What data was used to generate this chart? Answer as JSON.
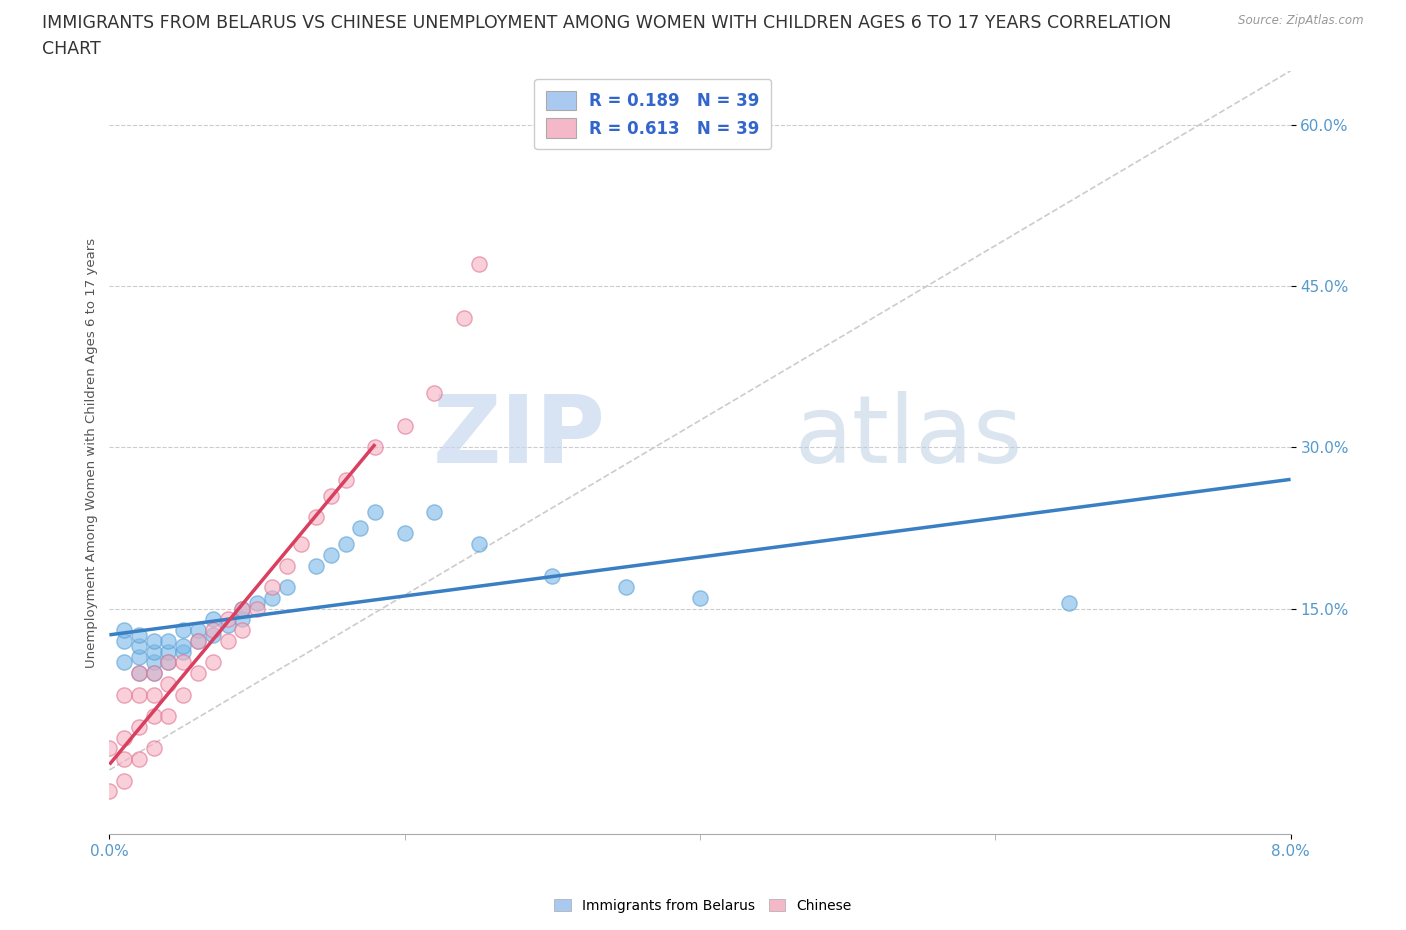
{
  "title_line1": "IMMIGRANTS FROM BELARUS VS CHINESE UNEMPLOYMENT AMONG WOMEN WITH CHILDREN AGES 6 TO 17 YEARS CORRELATION",
  "title_line2": "CHART",
  "source": "Source: ZipAtlas.com",
  "ylabel_label": "Unemployment Among Women with Children Ages 6 to 17 years",
  "legend_entries": [
    {
      "label": "Immigrants from Belarus",
      "R": "0.189",
      "N": "39",
      "color": "#aac9f0",
      "edgecolor": "#aac9f0"
    },
    {
      "label": "Chinese",
      "R": "0.613",
      "N": "39",
      "color": "#f5b8c8",
      "edgecolor": "#f5b8c8"
    }
  ],
  "watermark_zip": "ZIP",
  "watermark_atlas": "atlas",
  "belarus_scatter": {
    "x": [
      0.001,
      0.001,
      0.001,
      0.002,
      0.002,
      0.002,
      0.002,
      0.003,
      0.003,
      0.003,
      0.003,
      0.004,
      0.004,
      0.004,
      0.005,
      0.005,
      0.005,
      0.006,
      0.006,
      0.007,
      0.007,
      0.008,
      0.009,
      0.009,
      0.01,
      0.011,
      0.012,
      0.014,
      0.015,
      0.016,
      0.017,
      0.018,
      0.02,
      0.022,
      0.025,
      0.03,
      0.035,
      0.04,
      0.065
    ],
    "y": [
      0.1,
      0.12,
      0.13,
      0.09,
      0.105,
      0.115,
      0.125,
      0.09,
      0.1,
      0.11,
      0.12,
      0.1,
      0.11,
      0.12,
      0.11,
      0.115,
      0.13,
      0.12,
      0.13,
      0.125,
      0.14,
      0.135,
      0.14,
      0.15,
      0.155,
      0.16,
      0.17,
      0.19,
      0.2,
      0.21,
      0.225,
      0.24,
      0.22,
      0.24,
      0.21,
      0.18,
      0.17,
      0.16,
      0.155
    ],
    "color": "#7ab8e8",
    "edgecolor": "#5a9fd4",
    "size": 120
  },
  "chinese_scatter": {
    "x": [
      0.0,
      0.0,
      0.001,
      0.001,
      0.001,
      0.001,
      0.002,
      0.002,
      0.002,
      0.002,
      0.003,
      0.003,
      0.003,
      0.003,
      0.004,
      0.004,
      0.004,
      0.005,
      0.005,
      0.006,
      0.006,
      0.007,
      0.007,
      0.008,
      0.008,
      0.009,
      0.009,
      0.01,
      0.011,
      0.012,
      0.013,
      0.014,
      0.015,
      0.016,
      0.018,
      0.02,
      0.022,
      0.024,
      0.025
    ],
    "y": [
      -0.02,
      0.02,
      -0.01,
      0.01,
      0.03,
      0.07,
      0.01,
      0.04,
      0.07,
      0.09,
      0.02,
      0.05,
      0.07,
      0.09,
      0.05,
      0.08,
      0.1,
      0.07,
      0.1,
      0.09,
      0.12,
      0.1,
      0.13,
      0.12,
      0.14,
      0.13,
      0.15,
      0.15,
      0.17,
      0.19,
      0.21,
      0.235,
      0.255,
      0.27,
      0.3,
      0.32,
      0.35,
      0.42,
      0.47
    ],
    "color": "#f5b0c0",
    "edgecolor": "#e07090",
    "size": 120
  },
  "xlim": [
    0.0,
    0.08
  ],
  "ylim": [
    -0.06,
    0.65
  ],
  "ytick_vals": [
    0.15,
    0.3,
    0.45,
    0.6
  ],
  "ytick_labels": [
    "15.0%",
    "30.0%",
    "45.0%",
    "60.0%"
  ],
  "xtick_vals": [
    0.0,
    0.08
  ],
  "xtick_labels": [
    "0.0%",
    "8.0%"
  ],
  "background_color": "#ffffff",
  "grid_color": "#cccccc",
  "title_fontsize": 12.5,
  "axis_tick_fontsize": 11,
  "legend_fontsize": 12
}
